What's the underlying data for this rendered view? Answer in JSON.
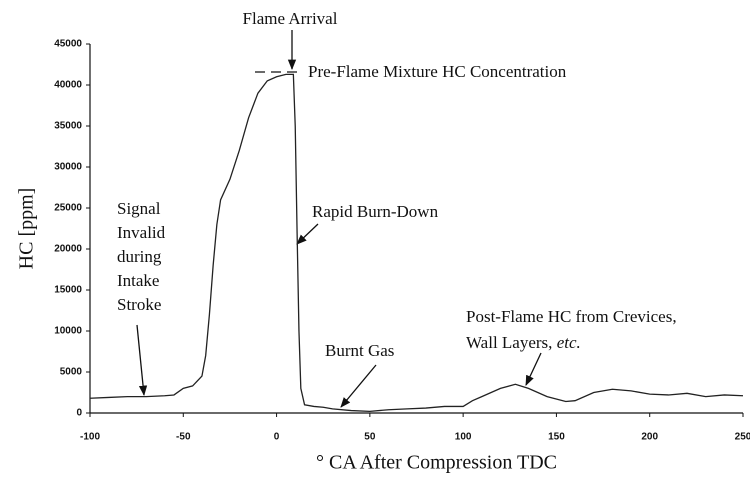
{
  "chart_data": {
    "type": "line",
    "xlabel": "° CA After Compression TDC",
    "ylabel": "HC [ppm]",
    "xlim": [
      -100,
      250
    ],
    "xticks": [
      -100,
      -50,
      0,
      50,
      100,
      150,
      200,
      250
    ],
    "ylim": [
      0,
      45000
    ],
    "yticks": [
      0,
      5000,
      10000,
      15000,
      20000,
      25000,
      30000,
      35000,
      40000,
      45000
    ],
    "annotations": {
      "flame_arrival": "Flame Arrival",
      "pre_flame": "Pre-Flame Mixture HC Concentration",
      "rapid_burn": "Rapid Burn-Down",
      "signal_invalid": [
        "Signal",
        "Invalid",
        "during",
        "Intake",
        "Stroke"
      ],
      "burnt_gas": "Burnt Gas",
      "post_flame": [
        "Post-Flame HC from Crevices,",
        "Wall Layers, "
      ],
      "post_flame_italic": "etc."
    },
    "series": [
      {
        "color": "#222",
        "x": [
          -100,
          -90,
          -80,
          -70,
          -60,
          -55,
          -50,
          -45,
          -40,
          -38,
          -36,
          -34,
          -32,
          -30,
          -25,
          -20,
          -15,
          -10,
          -5,
          0,
          5,
          9,
          10,
          11,
          12,
          13,
          15,
          20,
          25,
          30,
          40,
          50,
          60,
          70,
          80,
          90,
          100,
          105,
          110,
          120,
          128,
          135,
          145,
          155,
          160,
          170,
          180,
          190,
          200,
          210,
          220,
          230,
          240,
          250
        ],
        "values": [
          1800,
          1900,
          2000,
          2000,
          2100,
          2200,
          3000,
          3300,
          4500,
          7000,
          12000,
          18000,
          23000,
          26000,
          28500,
          32000,
          36000,
          39000,
          40500,
          41000,
          41300,
          41300,
          35000,
          22000,
          10000,
          3000,
          1000,
          800,
          700,
          500,
          300,
          200,
          400,
          500,
          600,
          800,
          800,
          1500,
          2000,
          3000,
          3500,
          3000,
          2000,
          1400,
          1500,
          2500,
          2900,
          2700,
          2300,
          2200,
          2400,
          2000,
          2200,
          2100
        ]
      }
    ]
  }
}
